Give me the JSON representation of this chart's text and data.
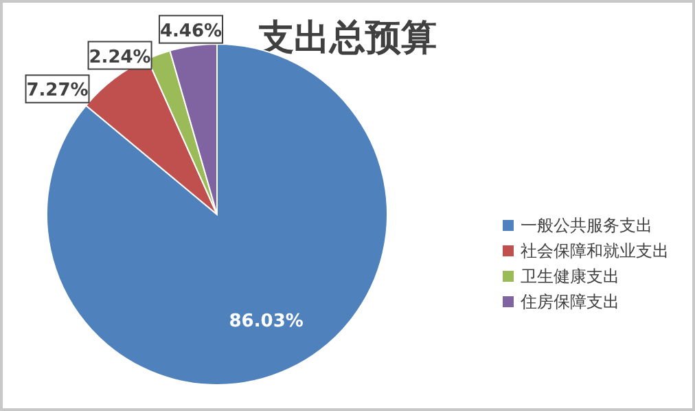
{
  "chart_data": {
    "type": "pie",
    "title": "支出总预算",
    "categories": [
      "一般公共服务支出",
      "社会保障和就业支出",
      "卫生健康支出",
      "住房保障支出"
    ],
    "values": [
      86.03,
      7.27,
      2.24,
      4.46
    ],
    "colors": [
      "#4f81bd",
      "#c0504d",
      "#9bbb59",
      "#8064a2"
    ],
    "value_labels": [
      "86.03%",
      "7.27%",
      "2.24%",
      "4.46%"
    ],
    "legend": "right"
  }
}
